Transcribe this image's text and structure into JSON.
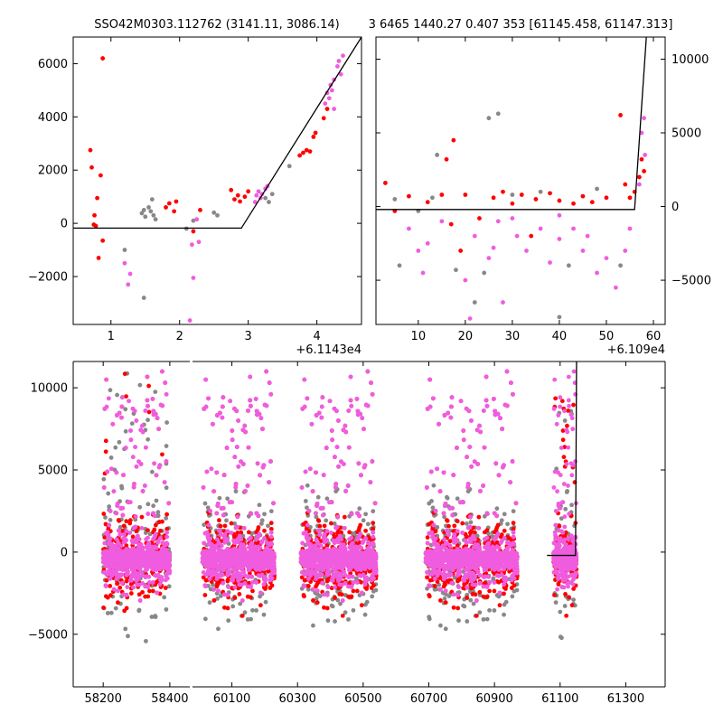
{
  "title_left": "SSO42M0303.112762 (3141.11, 3086.14)",
  "title_right": "3 6465 1440.27 0.407 353 [61145.458, 61147.313]",
  "colors": {
    "red": "#ff0000",
    "gray": "#888888",
    "magenta": "#f05ce0",
    "line": "#000000"
  },
  "chart_data": [
    {
      "id": "top-left",
      "type": "scatter",
      "xlim": [
        0.45,
        4.65
      ],
      "ylim": [
        -3800,
        7000
      ],
      "x_offset_label": "+6.1143e4",
      "x_ticks": [
        1,
        2,
        3,
        4
      ],
      "y_ticks": [
        -2000,
        0,
        2000,
        4000,
        6000
      ],
      "y_tick_labels": [
        "−2000",
        "0",
        "2000",
        "4000",
        "6000"
      ],
      "model_line": [
        [
          0.45,
          -180
        ],
        [
          2.9,
          -180
        ],
        [
          4.65,
          7000
        ]
      ],
      "series": [
        {
          "name": "red",
          "points": [
            [
              0.7,
              2750
            ],
            [
              0.72,
              2100
            ],
            [
              0.75,
              -50
            ],
            [
              0.76,
              300
            ],
            [
              0.78,
              -100
            ],
            [
              0.8,
              950
            ],
            [
              0.82,
              -1300
            ],
            [
              0.85,
              1800
            ],
            [
              0.88,
              -650
            ],
            [
              0.88,
              6200
            ],
            [
              1.8,
              600
            ],
            [
              1.85,
              750
            ],
            [
              1.92,
              450
            ],
            [
              1.95,
              820
            ],
            [
              2.2,
              -300
            ],
            [
              2.3,
              500
            ],
            [
              2.75,
              1250
            ],
            [
              2.8,
              900
            ],
            [
              2.85,
              1050
            ],
            [
              2.88,
              820
            ],
            [
              2.95,
              1000
            ],
            [
              3.0,
              1200
            ],
            [
              3.75,
              2550
            ],
            [
              3.8,
              2650
            ],
            [
              3.85,
              2750
            ],
            [
              3.9,
              2700
            ],
            [
              3.95,
              3250
            ],
            [
              3.98,
              3400
            ],
            [
              4.1,
              3950
            ],
            [
              4.15,
              4300
            ]
          ]
        },
        {
          "name": "gray",
          "points": [
            [
              1.45,
              380
            ],
            [
              1.48,
              500
            ],
            [
              1.5,
              250
            ],
            [
              1.55,
              600
            ],
            [
              1.58,
              450
            ],
            [
              1.6,
              900
            ],
            [
              1.62,
              300
            ],
            [
              1.65,
              150
            ],
            [
              1.48,
              -2800
            ],
            [
              2.5,
              400
            ],
            [
              2.55,
              300
            ],
            [
              3.6,
              2150
            ],
            [
              3.35,
              1100
            ],
            [
              3.3,
              800
            ],
            [
              3.25,
              950
            ],
            [
              1.2,
              -1000
            ],
            [
              2.1,
              -200
            ],
            [
              2.2,
              100
            ]
          ]
        },
        {
          "name": "magenta",
          "points": [
            [
              1.2,
              -1500
            ],
            [
              1.25,
              -2300
            ],
            [
              1.28,
              -1900
            ],
            [
              2.15,
              -3650
            ],
            [
              2.18,
              -800
            ],
            [
              2.2,
              -2050
            ],
            [
              2.25,
              150
            ],
            [
              2.28,
              -700
            ],
            [
              3.1,
              800
            ],
            [
              3.12,
              1050
            ],
            [
              3.15,
              1200
            ],
            [
              3.18,
              950
            ],
            [
              3.2,
              1100
            ],
            [
              3.25,
              1300
            ],
            [
              3.28,
              1400
            ],
            [
              4.15,
              4900
            ],
            [
              4.18,
              4700
            ],
            [
              4.2,
              5200
            ],
            [
              4.22,
              5000
            ],
            [
              4.25,
              5400
            ],
            [
              4.3,
              5900
            ],
            [
              4.32,
              6100
            ],
            [
              4.35,
              5600
            ],
            [
              4.38,
              6300
            ],
            [
              4.25,
              4300
            ],
            [
              4.12,
              4500
            ]
          ]
        }
      ]
    },
    {
      "id": "top-right",
      "type": "scatter",
      "xlim": [
        1.0,
        62.5
      ],
      "ylim": [
        -8000,
        11500
      ],
      "x_offset_label": "+6.109e4",
      "x_ticks": [
        10,
        20,
        30,
        40,
        50,
        60
      ],
      "y_ticks": [
        -5000,
        0,
        5000,
        10000
      ],
      "y_tick_labels": [
        "−5000",
        "0",
        "5000",
        "10000"
      ],
      "model_line": [
        [
          1.0,
          -200
        ],
        [
          56.0,
          -200
        ],
        [
          58.5,
          11500
        ]
      ],
      "series": [
        {
          "name": "red",
          "points": [
            [
              3,
              1600
            ],
            [
              5,
              -300
            ],
            [
              8,
              700
            ],
            [
              12,
              300
            ],
            [
              15,
              800
            ],
            [
              17,
              -1200
            ],
            [
              17.5,
              4500
            ],
            [
              20,
              800
            ],
            [
              23,
              -800
            ],
            [
              26,
              600
            ],
            [
              28,
              1000
            ],
            [
              30,
              200
            ],
            [
              32,
              800
            ],
            [
              35,
              500
            ],
            [
              38,
              900
            ],
            [
              40,
              400
            ],
            [
              43,
              200
            ],
            [
              45,
              700
            ],
            [
              47,
              300
            ],
            [
              50,
              600
            ],
            [
              53,
              6200
            ],
            [
              54,
              1500
            ],
            [
              55,
              600
            ],
            [
              56,
              1000
            ],
            [
              57,
              2000
            ],
            [
              57.5,
              3200
            ],
            [
              58,
              2400
            ],
            [
              16,
              3200
            ],
            [
              34,
              -2000
            ],
            [
              19,
              -3000
            ]
          ]
        },
        {
          "name": "gray",
          "points": [
            [
              5,
              500
            ],
            [
              10,
              -300
            ],
            [
              13,
              600
            ],
            [
              14,
              3500
            ],
            [
              25,
              6000
            ],
            [
              27,
              6300
            ],
            [
              30,
              800
            ],
            [
              36,
              1000
            ],
            [
              42,
              -4000
            ],
            [
              24,
              -4500
            ],
            [
              53,
              -4000
            ],
            [
              6,
              -4000
            ],
            [
              40,
              -7500
            ],
            [
              48,
              1200
            ],
            [
              18,
              -4300
            ],
            [
              22,
              -6500
            ]
          ]
        },
        {
          "name": "magenta",
          "points": [
            [
              8,
              -1500
            ],
            [
              10,
              -3000
            ],
            [
              12,
              -2500
            ],
            [
              15,
              -1000
            ],
            [
              20,
              -5000
            ],
            [
              21,
              -7600
            ],
            [
              22,
              -2000
            ],
            [
              25,
              -3500
            ],
            [
              27,
              -1000
            ],
            [
              28,
              -6500
            ],
            [
              31,
              -2000
            ],
            [
              33,
              -3000
            ],
            [
              36,
              -1500
            ],
            [
              38,
              -3800
            ],
            [
              40,
              -2200
            ],
            [
              43,
              -1500
            ],
            [
              45,
              -3000
            ],
            [
              46,
              -2000
            ],
            [
              50,
              -3500
            ],
            [
              52,
              -5500
            ],
            [
              54,
              -3000
            ],
            [
              55,
              -1500
            ],
            [
              57.5,
              5000
            ],
            [
              58,
              6000
            ],
            [
              58.2,
              3500
            ],
            [
              57,
              1500
            ],
            [
              30,
              -800
            ],
            [
              40,
              -600
            ],
            [
              48,
              -4500
            ],
            [
              11,
              -4500
            ],
            [
              26,
              -2800
            ]
          ]
        }
      ]
    },
    {
      "id": "bottom",
      "type": "scatter",
      "ylim": [
        -8200,
        11600
      ],
      "y_ticks": [
        -5000,
        0,
        5000,
        10000
      ],
      "y_tick_labels": [
        "−5000",
        "0",
        "5000",
        "10000"
      ],
      "model_line": [
        [
          61060,
          -200
        ],
        [
          61147,
          -200
        ],
        [
          61150,
          11600
        ]
      ],
      "segments": [
        {
          "xlim": [
            58110,
            58460
          ],
          "x_ticks": [
            58200,
            58400
          ],
          "clusters": [
            [
              58200,
              58400
            ]
          ]
        },
        {
          "xlim": [
            59980,
            61420
          ],
          "x_ticks": [
            60100,
            60300,
            60500,
            60700,
            60900,
            61100,
            61300
          ],
          "clusters": [
            [
              60010,
              60230
            ],
            [
              60310,
              60540
            ],
            [
              60690,
              60970
            ],
            [
              61080,
              61150
            ]
          ]
        }
      ]
    }
  ]
}
